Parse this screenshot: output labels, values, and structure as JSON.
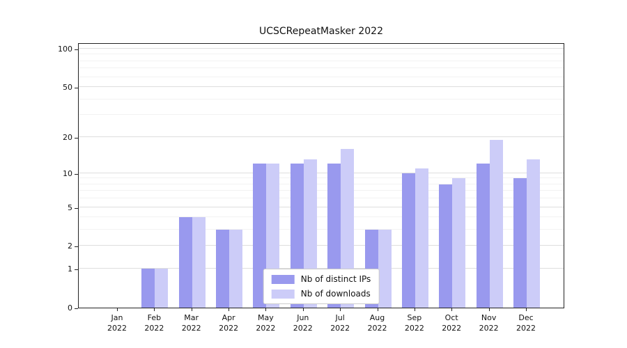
{
  "figure": {
    "title": "UCSCRepeatMasker 2022"
  },
  "chart_data": {
    "type": "bar",
    "title": "UCSCRepeatMasker 2022",
    "categories": [
      "Jan 2022",
      "Feb 2022",
      "Mar 2022",
      "Apr 2022",
      "May 2022",
      "Jun 2022",
      "Jul 2022",
      "Aug 2022",
      "Sep 2022",
      "Oct 2022",
      "Nov 2022",
      "Dec 2022"
    ],
    "series": [
      {
        "name": "Nb of distinct IPs",
        "color": "#9999ee",
        "values": [
          0,
          1,
          4,
          3,
          12,
          12,
          12,
          3,
          10,
          8,
          12,
          9
        ]
      },
      {
        "name": "Nb of downloads",
        "color": "#ccccf8",
        "values": [
          0,
          1,
          4,
          3,
          12,
          13,
          16,
          3,
          11,
          9,
          19,
          13
        ]
      }
    ],
    "yscale": "log1p",
    "yticks": [
      0,
      1,
      2,
      5,
      10,
      20,
      50,
      100
    ],
    "minor_yticks": [
      3,
      4,
      6,
      7,
      8,
      9,
      30,
      40,
      60,
      70,
      80,
      90
    ],
    "ylim": [
      0,
      112
    ],
    "xlabel": "",
    "ylabel": "",
    "grid": true,
    "legend_position": "lower center"
  }
}
